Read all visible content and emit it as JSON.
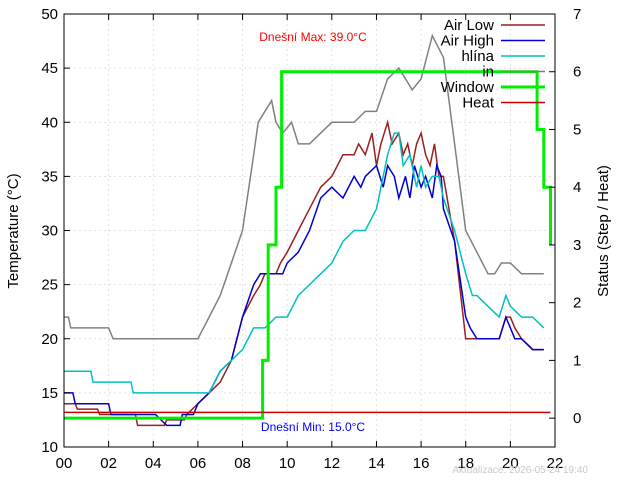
{
  "chart_data": {
    "type": "line",
    "xlabel": "",
    "ylabel": "Temperature (°C)",
    "y2label": "Status (Step / Heat)",
    "xlim": [
      0,
      22
    ],
    "ylim": [
      10,
      50
    ],
    "y2lim": [
      -0.5,
      7
    ],
    "x_ticks": [
      "00",
      "02",
      "04",
      "06",
      "08",
      "10",
      "12",
      "14",
      "16",
      "18",
      "20",
      "22"
    ],
    "y_ticks": [
      "10",
      "15",
      "20",
      "25",
      "30",
      "35",
      "40",
      "45",
      "50"
    ],
    "y2_ticks": [
      "0",
      "1",
      "2",
      "3",
      "4",
      "5",
      "6",
      "7"
    ],
    "grid": true,
    "legend_position": "top-right",
    "annotations": {
      "max_text": "Dnešní Max: 39.0°C",
      "min_text": "Dnešní Min: 15.0°C",
      "max_color": "#ff0000",
      "min_color": "#0000ff",
      "updated_text": "Aktualizace: 2026-05-24 19:40"
    },
    "series": [
      {
        "name": "Air Low",
        "color": "#9a1f1f",
        "width": 1.5,
        "axis": "y",
        "x": [
          0,
          0.5,
          0.6,
          1.5,
          1.6,
          3.2,
          3.3,
          4.5,
          4.6,
          5.4,
          5.5,
          6,
          6.5,
          7,
          7.5,
          8,
          8.5,
          8.8,
          9,
          9.5,
          9.7,
          10,
          10.5,
          11,
          11.5,
          12,
          12.5,
          13,
          13.2,
          13.5,
          13.8,
          14,
          14.2,
          14.5,
          14.7,
          15,
          15.2,
          15.4,
          15.6,
          15.8,
          16,
          16.2,
          16.4,
          16.6,
          16.8,
          17,
          17.5,
          18,
          18.2,
          18.5,
          19,
          19.5,
          19.8,
          20,
          20.2,
          20.5,
          21,
          21.5
        ],
        "y": [
          14,
          14,
          13.5,
          13.5,
          13,
          13,
          12,
          12,
          12.5,
          12.5,
          13,
          14,
          15,
          16,
          18,
          22,
          24,
          25,
          26,
          26,
          27,
          28,
          30,
          32,
          34,
          35,
          37,
          37,
          38,
          37,
          39,
          36,
          38,
          40,
          38,
          39,
          37,
          38,
          36,
          38,
          39,
          37,
          36,
          38,
          35,
          35,
          29,
          20,
          20,
          20,
          20,
          20,
          22,
          22,
          21,
          20,
          19,
          19
        ]
      },
      {
        "name": "Air High",
        "color": "#0000cc",
        "width": 1.5,
        "axis": "y",
        "x": [
          0,
          0.4,
          0.5,
          1,
          2,
          2.1,
          4,
          4.1,
          4.6,
          5.2,
          5.3,
          5.8,
          6,
          6.5,
          7,
          7.5,
          8,
          8.5,
          8.8,
          9,
          9.5,
          9.8,
          10,
          10.5,
          11,
          11.5,
          12,
          12.5,
          13,
          13.3,
          13.5,
          14,
          14.3,
          14.5,
          14.8,
          15,
          15.3,
          15.5,
          15.7,
          16,
          16.2,
          16.5,
          16.7,
          16.9,
          17,
          17.5,
          18,
          18.2,
          18.5,
          19,
          19.5,
          19.8,
          20,
          20.2,
          20.5,
          21,
          21.5
        ],
        "y": [
          15,
          15,
          14,
          14,
          14,
          13,
          13,
          13,
          12,
          12,
          13,
          13,
          14,
          15,
          17,
          18,
          22,
          25,
          26,
          26,
          26,
          26,
          27,
          28,
          30,
          33,
          34,
          33,
          35,
          34,
          35,
          36,
          34,
          36,
          35,
          33,
          35,
          33,
          36,
          34,
          35,
          33,
          36,
          35,
          32,
          29,
          22,
          21,
          20,
          20,
          20,
          22,
          21,
          20,
          20,
          19,
          19
        ]
      },
      {
        "name": "hlína",
        "color": "#00c0c0",
        "width": 1.5,
        "axis": "y",
        "x": [
          0,
          1.2,
          1.3,
          3,
          3.1,
          6.5,
          7,
          7.5,
          8,
          8.5,
          9,
          9.5,
          10,
          10.5,
          11,
          11.5,
          12,
          12.5,
          13,
          13.5,
          14,
          14.5,
          14.8,
          15,
          15.2,
          15.5,
          15.8,
          16,
          16.2,
          16.5,
          16.8,
          17,
          17.5,
          18,
          18.3,
          18.5,
          19,
          19.5,
          19.8,
          20,
          20.5,
          21,
          21.5
        ],
        "y": [
          17,
          17,
          16,
          16,
          15,
          15,
          17,
          18,
          19,
          21,
          21,
          22,
          22,
          24,
          25,
          26,
          27,
          29,
          30,
          30,
          32,
          37,
          39,
          39,
          36,
          37,
          34,
          36,
          34,
          35,
          35,
          33,
          30,
          26,
          24,
          24,
          23,
          22,
          24,
          23,
          22,
          22,
          21
        ]
      },
      {
        "name": "in",
        "color": "#808080",
        "width": 1.5,
        "axis": "y",
        "x": [
          0,
          0.2,
          0.3,
          2,
          2.2,
          6,
          6.5,
          7,
          7.5,
          8,
          8.5,
          8.7,
          9,
          9.3,
          9.5,
          9.8,
          10.2,
          10.5,
          11,
          11.5,
          12,
          12.5,
          13,
          13.5,
          14,
          14.5,
          15,
          15.3,
          15.6,
          16,
          16.5,
          17,
          17.5,
          18,
          18.5,
          19,
          19.3,
          19.6,
          20,
          20.5,
          21,
          21.5
        ],
        "y": [
          22,
          22,
          21,
          21,
          20,
          20,
          22,
          24,
          27,
          30,
          37,
          40,
          41,
          42,
          40,
          39,
          40,
          38,
          38,
          39,
          40,
          40,
          40,
          41,
          41,
          44,
          45,
          44,
          43,
          44,
          48,
          46,
          38,
          30,
          28,
          26,
          26,
          27,
          27,
          26,
          26,
          26
        ]
      },
      {
        "name": "Window",
        "color": "#00ee00",
        "width": 3,
        "axis": "y2",
        "x": [
          0,
          8.9,
          8.9,
          9.15,
          9.15,
          9.5,
          9.5,
          9.75,
          9.75,
          21.2,
          21.2,
          21.5,
          21.5,
          21.8,
          21.8
        ],
        "y": [
          0,
          0,
          1,
          1,
          3,
          3,
          4,
          4,
          6,
          6,
          5,
          5,
          4,
          4,
          3
        ]
      },
      {
        "name": "Heat",
        "color": "#cc0000",
        "width": 1.5,
        "axis": "y2",
        "x": [
          0,
          21.8
        ],
        "y": [
          0.1,
          0.1
        ]
      }
    ]
  }
}
